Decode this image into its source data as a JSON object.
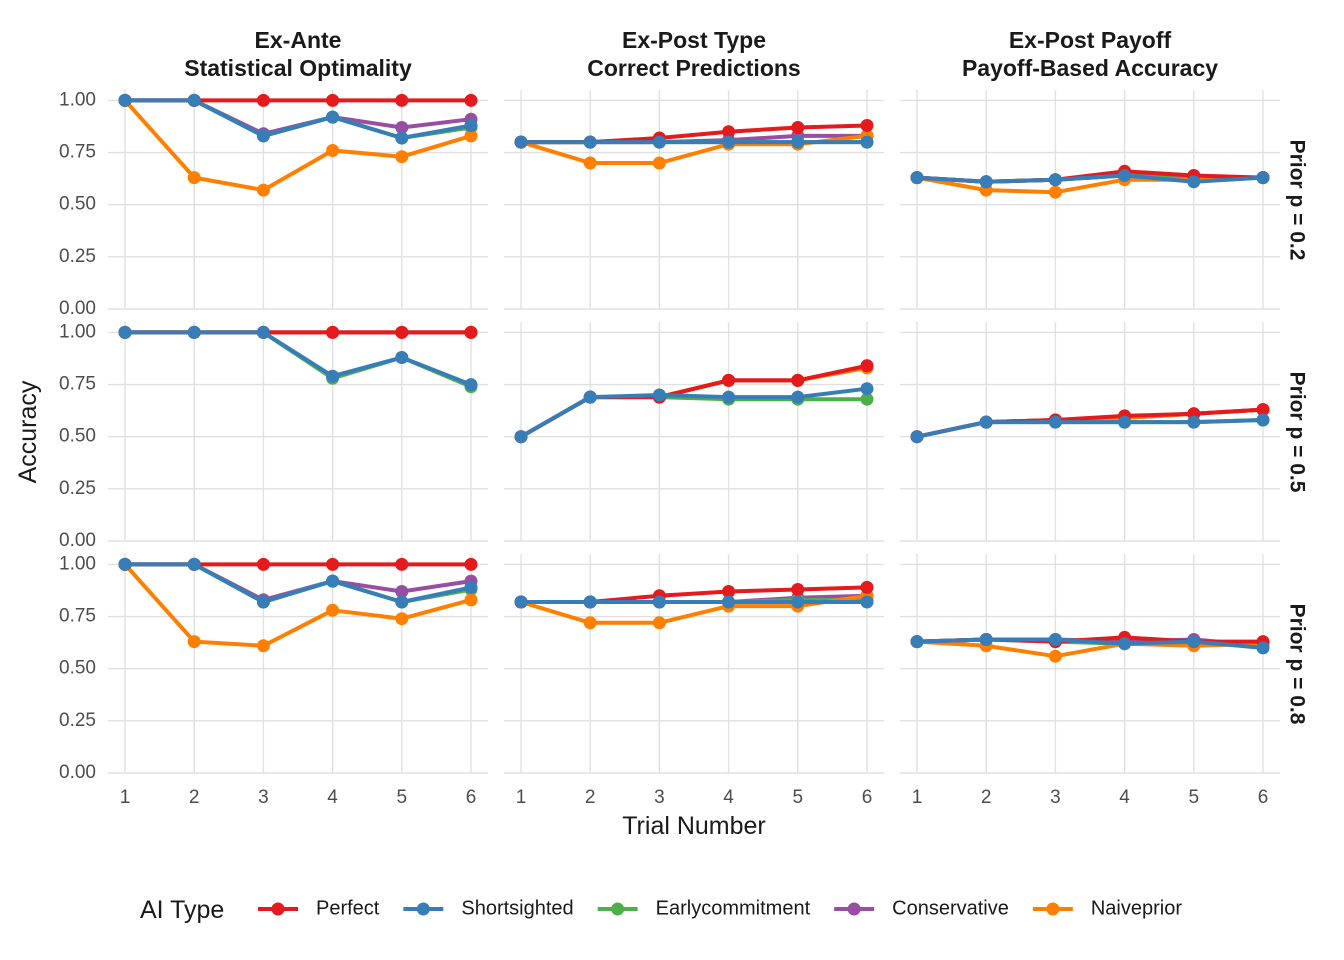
{
  "chart_data": {
    "type": "line",
    "layout": "facet grid: 3 rows (prior) x 3 columns (metric)",
    "x": [
      1,
      2,
      3,
      4,
      5,
      6
    ],
    "xlabel": "Trial Number",
    "ylabel": "Accuracy",
    "ylim": [
      0,
      1.05
    ],
    "yticks": [
      "0.00",
      "0.25",
      "0.50",
      "0.75",
      "1.00"
    ],
    "xticks": [
      "1",
      "2",
      "3",
      "4",
      "5",
      "6"
    ],
    "grid": true,
    "columns": [
      {
        "title_line1": "Ex-Ante",
        "title_line2": "Statistical Optimality"
      },
      {
        "title_line1": "Ex-Post Type",
        "title_line2": "Correct Predictions"
      },
      {
        "title_line1": "Ex-Post Payoff",
        "title_line2": "Payoff-Based Accuracy"
      }
    ],
    "rows": [
      {
        "label": "Prior p = 0.2"
      },
      {
        "label": "Prior p = 0.5"
      },
      {
        "label": "Prior p = 0.8"
      }
    ],
    "legend": {
      "title": "AI Type",
      "position": "bottom",
      "items": [
        {
          "name": "Perfect",
          "color": "#E41A1C"
        },
        {
          "name": "Shortsighted",
          "color": "#377EB8"
        },
        {
          "name": "Earlycommitment",
          "color": "#4DAF4A"
        },
        {
          "name": "Conservative",
          "color": "#984EA3"
        },
        {
          "name": "Naiveprior",
          "color": "#FF7F00"
        }
      ]
    },
    "panels": [
      [
        {
          "series": [
            {
              "name": "Perfect",
              "values": [
                1.0,
                1.0,
                1.0,
                1.0,
                1.0,
                1.0
              ]
            },
            {
              "name": "Shortsighted",
              "values": [
                1.0,
                1.0,
                0.83,
                0.92,
                0.82,
                0.88
              ]
            },
            {
              "name": "Earlycommitment",
              "values": [
                1.0,
                1.0,
                0.83,
                0.92,
                0.82,
                0.87
              ]
            },
            {
              "name": "Conservative",
              "values": [
                1.0,
                1.0,
                0.84,
                0.92,
                0.87,
                0.91
              ]
            },
            {
              "name": "Naiveprior",
              "values": [
                1.0,
                0.63,
                0.57,
                0.76,
                0.73,
                0.83
              ]
            }
          ]
        },
        {
          "series": [
            {
              "name": "Perfect",
              "values": [
                0.8,
                0.8,
                0.82,
                0.85,
                0.87,
                0.88
              ]
            },
            {
              "name": "Shortsighted",
              "values": [
                0.8,
                0.8,
                0.8,
                0.8,
                0.8,
                0.8
              ]
            },
            {
              "name": "Earlycommitment",
              "values": [
                0.8,
                0.8,
                0.8,
                0.8,
                0.8,
                0.8
              ]
            },
            {
              "name": "Conservative",
              "values": [
                0.8,
                0.8,
                0.8,
                0.81,
                0.83,
                0.83
              ]
            },
            {
              "name": "Naiveprior",
              "values": [
                0.8,
                0.7,
                0.7,
                0.79,
                0.79,
                0.83
              ]
            }
          ]
        },
        {
          "series": [
            {
              "name": "Perfect",
              "values": [
                0.63,
                0.61,
                0.62,
                0.66,
                0.64,
                0.63
              ]
            },
            {
              "name": "Shortsighted",
              "values": [
                0.63,
                0.61,
                0.62,
                0.64,
                0.61,
                0.63
              ]
            },
            {
              "name": "Earlycommitment",
              "values": [
                0.63,
                0.61,
                0.62,
                0.64,
                0.62,
                0.63
              ]
            },
            {
              "name": "Conservative",
              "values": [
                0.63,
                0.61,
                0.62,
                0.64,
                0.63,
                0.63
              ]
            },
            {
              "name": "Naiveprior",
              "values": [
                0.63,
                0.57,
                0.56,
                0.62,
                0.62,
                0.63
              ]
            }
          ]
        }
      ],
      [
        {
          "series": [
            {
              "name": "Perfect",
              "values": [
                1.0,
                1.0,
                1.0,
                1.0,
                1.0,
                1.0
              ]
            },
            {
              "name": "Shortsighted",
              "values": [
                1.0,
                1.0,
                1.0,
                0.79,
                0.88,
                0.75
              ]
            },
            {
              "name": "Earlycommitment",
              "values": [
                1.0,
                1.0,
                1.0,
                0.78,
                0.88,
                0.74
              ]
            },
            {
              "name": "Conservative",
              "values": [
                1.0,
                1.0,
                1.0,
                1.0,
                1.0,
                1.0
              ]
            },
            {
              "name": "Naiveprior",
              "values": [
                1.0,
                1.0,
                1.0,
                1.0,
                1.0,
                1.0
              ]
            }
          ]
        },
        {
          "series": [
            {
              "name": "Perfect",
              "values": [
                0.5,
                0.69,
                0.69,
                0.77,
                0.77,
                0.84
              ]
            },
            {
              "name": "Shortsighted",
              "values": [
                0.5,
                0.69,
                0.7,
                0.69,
                0.69,
                0.73
              ]
            },
            {
              "name": "Earlycommitment",
              "values": [
                0.5,
                0.69,
                0.69,
                0.68,
                0.68,
                0.68
              ]
            },
            {
              "name": "Conservative",
              "values": [
                0.5,
                0.69,
                0.69,
                0.77,
                0.77,
                0.84
              ]
            },
            {
              "name": "Naiveprior",
              "values": [
                0.5,
                0.69,
                0.69,
                0.77,
                0.77,
                0.83
              ]
            }
          ]
        },
        {
          "series": [
            {
              "name": "Perfect",
              "values": [
                0.5,
                0.57,
                0.58,
                0.6,
                0.61,
                0.63
              ]
            },
            {
              "name": "Shortsighted",
              "values": [
                0.5,
                0.57,
                0.57,
                0.57,
                0.57,
                0.58
              ]
            },
            {
              "name": "Earlycommitment",
              "values": [
                0.5,
                0.57,
                0.57,
                0.57,
                0.57,
                0.58
              ]
            },
            {
              "name": "Conservative",
              "values": [
                0.5,
                0.57,
                0.58,
                0.59,
                0.61,
                0.63
              ]
            },
            {
              "name": "Naiveprior",
              "values": [
                0.5,
                0.57,
                0.58,
                0.59,
                0.61,
                0.63
              ]
            }
          ]
        }
      ],
      [
        {
          "series": [
            {
              "name": "Perfect",
              "values": [
                1.0,
                1.0,
                1.0,
                1.0,
                1.0,
                1.0
              ]
            },
            {
              "name": "Shortsighted",
              "values": [
                1.0,
                1.0,
                0.82,
                0.92,
                0.82,
                0.89
              ]
            },
            {
              "name": "Earlycommitment",
              "values": [
                1.0,
                1.0,
                0.82,
                0.92,
                0.82,
                0.88
              ]
            },
            {
              "name": "Conservative",
              "values": [
                1.0,
                1.0,
                0.83,
                0.92,
                0.87,
                0.92
              ]
            },
            {
              "name": "Naiveprior",
              "values": [
                1.0,
                0.63,
                0.61,
                0.78,
                0.74,
                0.83
              ]
            }
          ]
        },
        {
          "series": [
            {
              "name": "Perfect",
              "values": [
                0.82,
                0.82,
                0.85,
                0.87,
                0.88,
                0.89
              ]
            },
            {
              "name": "Shortsighted",
              "values": [
                0.82,
                0.82,
                0.82,
                0.82,
                0.82,
                0.82
              ]
            },
            {
              "name": "Earlycommitment",
              "values": [
                0.82,
                0.82,
                0.82,
                0.82,
                0.83,
                0.83
              ]
            },
            {
              "name": "Conservative",
              "values": [
                0.82,
                0.82,
                0.82,
                0.82,
                0.84,
                0.85
              ]
            },
            {
              "name": "Naiveprior",
              "values": [
                0.82,
                0.72,
                0.72,
                0.8,
                0.8,
                0.85
              ]
            }
          ]
        },
        {
          "series": [
            {
              "name": "Perfect",
              "values": [
                0.63,
                0.64,
                0.63,
                0.65,
                0.63,
                0.63
              ]
            },
            {
              "name": "Shortsighted",
              "values": [
                0.63,
                0.64,
                0.64,
                0.62,
                0.63,
                0.6
              ]
            },
            {
              "name": "Earlycommitment",
              "values": [
                0.63,
                0.64,
                0.63,
                0.62,
                0.62,
                0.62
              ]
            },
            {
              "name": "Conservative",
              "values": [
                0.63,
                0.64,
                0.64,
                0.63,
                0.64,
                0.61
              ]
            },
            {
              "name": "Naiveprior",
              "values": [
                0.63,
                0.61,
                0.56,
                0.62,
                0.61,
                0.62
              ]
            }
          ]
        }
      ]
    ]
  }
}
